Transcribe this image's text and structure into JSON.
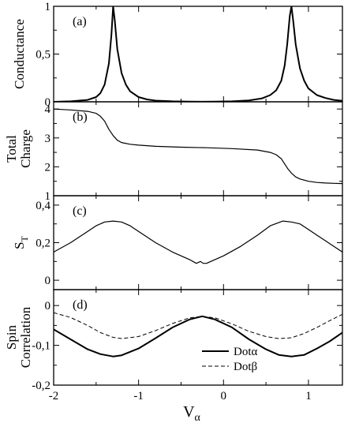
{
  "chart_data": [
    {
      "type": "line",
      "panel_label": "(a)",
      "ylabel_lines": [
        "Conductance"
      ],
      "xlim": [
        -2,
        1.4
      ],
      "ylim": [
        0,
        1
      ],
      "yticks": [
        0,
        0.5,
        1
      ],
      "ytick_labels": [
        "0",
        "0,5",
        "1"
      ],
      "xticks": [
        -2,
        -1,
        0,
        1
      ],
      "series": [
        {
          "style": "solid",
          "width": 2,
          "x": [
            -2.0,
            -1.8,
            -1.6,
            -1.5,
            -1.45,
            -1.4,
            -1.35,
            -1.32,
            -1.3,
            -1.28,
            -1.25,
            -1.2,
            -1.15,
            -1.1,
            -1.0,
            -0.9,
            -0.8,
            -0.6,
            -0.4,
            -0.25,
            -0.1,
            0.1,
            0.3,
            0.45,
            0.55,
            0.62,
            0.68,
            0.72,
            0.75,
            0.78,
            0.8,
            0.82,
            0.85,
            0.9,
            0.95,
            1.0,
            1.1,
            1.2,
            1.3,
            1.4
          ],
          "y": [
            0.0,
            0.005,
            0.02,
            0.05,
            0.09,
            0.18,
            0.4,
            0.7,
            1.0,
            0.85,
            0.55,
            0.3,
            0.18,
            0.11,
            0.05,
            0.025,
            0.012,
            0.005,
            0.002,
            0.001,
            0.002,
            0.005,
            0.015,
            0.035,
            0.07,
            0.12,
            0.22,
            0.38,
            0.6,
            0.9,
            1.0,
            0.85,
            0.6,
            0.35,
            0.22,
            0.14,
            0.07,
            0.04,
            0.02,
            0.01
          ]
        }
      ]
    },
    {
      "type": "line",
      "panel_label": "(b)",
      "ylabel_lines": [
        "Total",
        "Charge"
      ],
      "xlim": [
        -2,
        1.4
      ],
      "ylim": [
        1,
        4.25
      ],
      "yticks": [
        1,
        2,
        3,
        4
      ],
      "ytick_labels": [
        "1",
        "2",
        "3",
        "4"
      ],
      "xticks": [
        -2,
        -1,
        0,
        1
      ],
      "series": [
        {
          "style": "solid",
          "width": 1.2,
          "x": [
            -2.0,
            -1.8,
            -1.6,
            -1.5,
            -1.45,
            -1.4,
            -1.35,
            -1.3,
            -1.25,
            -1.2,
            -1.1,
            -1.0,
            -0.8,
            -0.5,
            -0.2,
            0.1,
            0.4,
            0.55,
            0.62,
            0.68,
            0.72,
            0.76,
            0.8,
            0.85,
            0.9,
            1.0,
            1.1,
            1.2,
            1.3,
            1.4
          ],
          "y": [
            4.0,
            3.97,
            3.92,
            3.85,
            3.75,
            3.58,
            3.3,
            3.08,
            2.92,
            2.84,
            2.78,
            2.75,
            2.71,
            2.68,
            2.66,
            2.63,
            2.58,
            2.5,
            2.42,
            2.28,
            2.1,
            1.92,
            1.78,
            1.65,
            1.58,
            1.5,
            1.46,
            1.44,
            1.43,
            1.42
          ]
        }
      ]
    },
    {
      "type": "line",
      "panel_label": "(c)",
      "ylabel_main": "S",
      "ylabel_sub": "T",
      "xlim": [
        -2,
        1.4
      ],
      "ylim": [
        -0.05,
        0.45
      ],
      "yticks": [
        0,
        0.2,
        0.4
      ],
      "ytick_labels": [
        "0",
        "0,2",
        "0,4"
      ],
      "xticks": [
        -2,
        -1,
        0,
        1
      ],
      "series": [
        {
          "style": "solid",
          "width": 1.2,
          "x": [
            -2.0,
            -1.8,
            -1.6,
            -1.5,
            -1.4,
            -1.3,
            -1.2,
            -1.1,
            -1.0,
            -0.8,
            -0.6,
            -0.4,
            -0.32,
            -0.27,
            -0.24,
            -0.2,
            -0.1,
            0.0,
            0.2,
            0.4,
            0.55,
            0.7,
            0.8,
            0.9,
            1.0,
            1.1,
            1.2,
            1.3,
            1.4
          ],
          "y": [
            0.15,
            0.2,
            0.26,
            0.29,
            0.31,
            0.315,
            0.31,
            0.29,
            0.26,
            0.2,
            0.15,
            0.11,
            0.09,
            0.1,
            0.09,
            0.09,
            0.11,
            0.13,
            0.18,
            0.24,
            0.29,
            0.315,
            0.31,
            0.3,
            0.27,
            0.24,
            0.21,
            0.18,
            0.15
          ]
        }
      ]
    },
    {
      "type": "line",
      "panel_label": "(d)",
      "ylabel_lines": [
        "Spin",
        "Correlation"
      ],
      "xlim": [
        -2,
        1.4
      ],
      "ylim": [
        -0.2,
        0.04
      ],
      "yticks": [
        -0.2,
        -0.1,
        0
      ],
      "ytick_labels": [
        "-0,2",
        "-0,1",
        "0"
      ],
      "xticks": [
        -2,
        -1,
        0,
        1
      ],
      "xtick_labels": [
        "-2",
        "-1",
        "0",
        "1"
      ],
      "xlabel_main": "V",
      "xlabel_sub": "α",
      "legend": {
        "placement": "lower-right",
        "labels": [
          "Dotα",
          "Dotβ"
        ]
      },
      "series": [
        {
          "name": "Dotα",
          "style": "solid",
          "width": 2,
          "x": [
            -2.0,
            -1.8,
            -1.6,
            -1.45,
            -1.3,
            -1.2,
            -1.0,
            -0.8,
            -0.6,
            -0.4,
            -0.25,
            -0.1,
            0.1,
            0.3,
            0.5,
            0.65,
            0.8,
            0.95,
            1.1,
            1.25,
            1.4
          ],
          "y": [
            -0.06,
            -0.085,
            -0.11,
            -0.122,
            -0.128,
            -0.125,
            -0.108,
            -0.082,
            -0.055,
            -0.035,
            -0.027,
            -0.035,
            -0.055,
            -0.085,
            -0.11,
            -0.124,
            -0.128,
            -0.124,
            -0.108,
            -0.09,
            -0.068
          ]
        },
        {
          "name": "Dotβ",
          "style": "dashed",
          "width": 1,
          "x": [
            -2.0,
            -1.8,
            -1.6,
            -1.45,
            -1.3,
            -1.2,
            -1.0,
            -0.8,
            -0.6,
            -0.4,
            -0.25,
            -0.1,
            0.1,
            0.3,
            0.5,
            0.65,
            0.8,
            0.95,
            1.1,
            1.25,
            1.4
          ],
          "y": [
            -0.018,
            -0.03,
            -0.05,
            -0.068,
            -0.08,
            -0.083,
            -0.078,
            -0.063,
            -0.045,
            -0.031,
            -0.027,
            -0.031,
            -0.046,
            -0.065,
            -0.078,
            -0.083,
            -0.081,
            -0.07,
            -0.055,
            -0.038,
            -0.022
          ]
        }
      ]
    }
  ]
}
